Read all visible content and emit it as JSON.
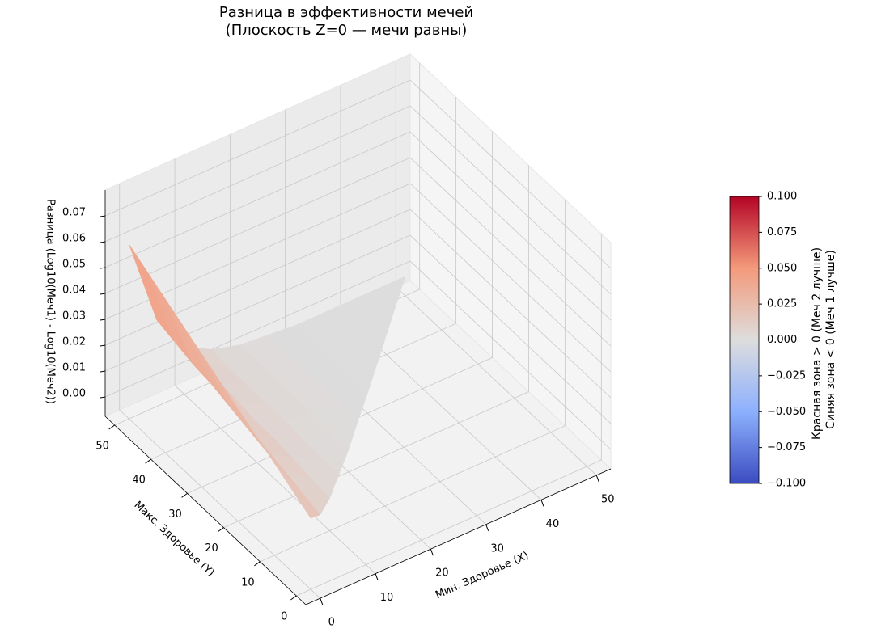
{
  "chart_data": {
    "type": "surface3d",
    "title": "Разница в эффективности мечей",
    "subtitle": "(Плоскость Z=0 — мечи равны)",
    "x_label": "Мин. Здоровье (X)",
    "y_label": "Макс. Здоровье (Y)",
    "z_label": "Разница (Log10(Меч1) - Log10(Меч2))",
    "x": [
      0,
      5,
      10,
      15,
      20,
      25,
      30,
      35,
      40,
      45,
      50
    ],
    "y": [
      0,
      5,
      10,
      15,
      20,
      25,
      30,
      35,
      40,
      45,
      50
    ],
    "z": [
      [
        0.02,
        null,
        null,
        null,
        null,
        null,
        null,
        null,
        null,
        null,
        null
      ],
      [
        0.024,
        0.01,
        null,
        null,
        null,
        null,
        null,
        null,
        null,
        null,
        null
      ],
      [
        0.028,
        0.012,
        0.005,
        null,
        null,
        null,
        null,
        null,
        null,
        null,
        null
      ],
      [
        0.032,
        0.014,
        0.006,
        0.003,
        null,
        null,
        null,
        null,
        null,
        null,
        null
      ],
      [
        0.036,
        0.015,
        0.007,
        0.003,
        0.001,
        null,
        null,
        null,
        null,
        null,
        null
      ],
      [
        0.04,
        0.017,
        0.008,
        0.003,
        0.001,
        0.001,
        null,
        null,
        null,
        null,
        null
      ],
      [
        0.044,
        0.019,
        0.008,
        0.004,
        0.002,
        0.001,
        0.0,
        null,
        null,
        null,
        null
      ],
      [
        0.048,
        0.021,
        0.009,
        0.004,
        0.002,
        0.001,
        0.0,
        0.0,
        null,
        null,
        null
      ],
      [
        0.052,
        0.022,
        0.01,
        0.004,
        0.002,
        0.001,
        0.0,
        0.0,
        0.0,
        null,
        null
      ],
      [
        0.056,
        0.024,
        0.011,
        0.004,
        0.002,
        0.001,
        0.0,
        0.0,
        0.0,
        0.0,
        null
      ],
      [
        0.06,
        0.026,
        0.011,
        0.005,
        0.002,
        0.001,
        0.0,
        0.0,
        0.0,
        0.0,
        0.0
      ]
    ],
    "xlim": [
      -2.6,
      52.6
    ],
    "ylim": [
      -2.6,
      52.6
    ],
    "zlim": [
      -0.0075,
      0.08
    ],
    "xticks": [
      0,
      10,
      20,
      30,
      40,
      50
    ],
    "yticks": [
      0,
      10,
      20,
      30,
      40,
      50
    ],
    "zticks": [
      {
        "value": 0,
        "label": "0.00"
      },
      {
        "value": 0.01,
        "label": "0.01"
      },
      {
        "value": 0.02,
        "label": "0.02"
      },
      {
        "value": 0.03,
        "label": "0.03"
      },
      {
        "value": 0.04,
        "label": "0.04"
      },
      {
        "value": 0.05,
        "label": "0.05"
      },
      {
        "value": 0.06,
        "label": "0.06"
      },
      {
        "value": 0.07,
        "label": "0.07"
      }
    ],
    "colormap": [
      "#3b4cc0",
      "#8db0fe",
      "#dddddd",
      "#f49a7b",
      "#b40426"
    ],
    "clim": [
      -0.1,
      0.1
    ],
    "cticks": [
      {
        "value": -0.1,
        "label": "−0.100"
      },
      {
        "value": -0.075,
        "label": "−0.075"
      },
      {
        "value": -0.05,
        "label": "−0.050"
      },
      {
        "value": -0.025,
        "label": "−0.025"
      },
      {
        "value": 0,
        "label": "0.000"
      },
      {
        "value": 0.025,
        "label": "0.025"
      },
      {
        "value": 0.05,
        "label": "0.050"
      },
      {
        "value": 0.075,
        "label": "0.075"
      },
      {
        "value": 0.1,
        "label": "0.100"
      }
    ],
    "colorbar_label": [
      "Красная зона > 0 (Меч 2 лучше)",
      "Синяя зона < 0 (Меч 1 лучше)"
    ],
    "grid": true
  }
}
